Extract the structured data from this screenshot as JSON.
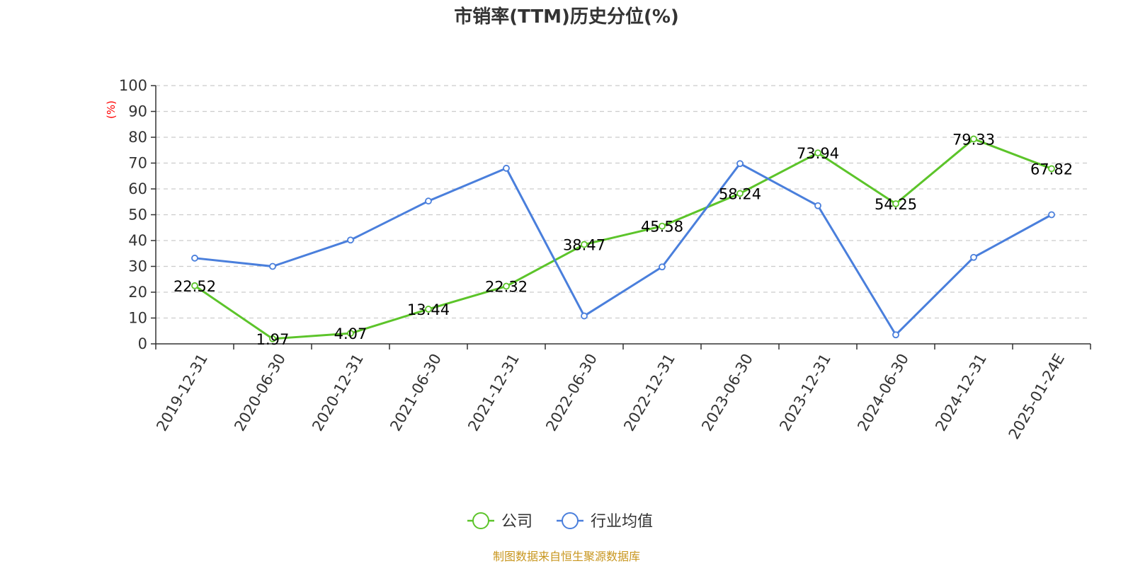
{
  "chart_data": {
    "type": "line",
    "title": "市销率(TTM)历史分位(%)",
    "ylabel": "(%)",
    "xlabel": "",
    "ylim": [
      0,
      100
    ],
    "yticks": [
      0,
      10,
      20,
      30,
      40,
      50,
      60,
      70,
      80,
      90,
      100
    ],
    "categories": [
      "2019-12-31",
      "2020-06-30",
      "2020-12-31",
      "2021-06-30",
      "2021-12-31",
      "2022-06-30",
      "2022-12-31",
      "2023-06-30",
      "2023-12-31",
      "2024-06-30",
      "2024-12-31",
      "2025-01-24E"
    ],
    "grid": true,
    "legend_position": "bottom-center",
    "series": [
      {
        "name": "公司",
        "color": "#5cc42a",
        "values": [
          22.52,
          1.97,
          4.07,
          13.44,
          22.32,
          38.47,
          45.58,
          58.24,
          73.94,
          54.25,
          79.33,
          67.82
        ],
        "labels": [
          "22.52",
          "1.97",
          "4.07",
          "13.44",
          "22.32",
          "38.47",
          "45.58",
          "58.24",
          "73.94",
          "54.25",
          "79.33",
          "67.82"
        ]
      },
      {
        "name": "行业均值",
        "color": "#4a7fdc",
        "values": [
          33.2,
          30.0,
          40.2,
          55.3,
          68.0,
          10.8,
          29.8,
          69.8,
          53.5,
          3.5,
          33.5,
          50.0
        ]
      }
    ],
    "source": "制图数据来自恒生聚源数据库"
  }
}
